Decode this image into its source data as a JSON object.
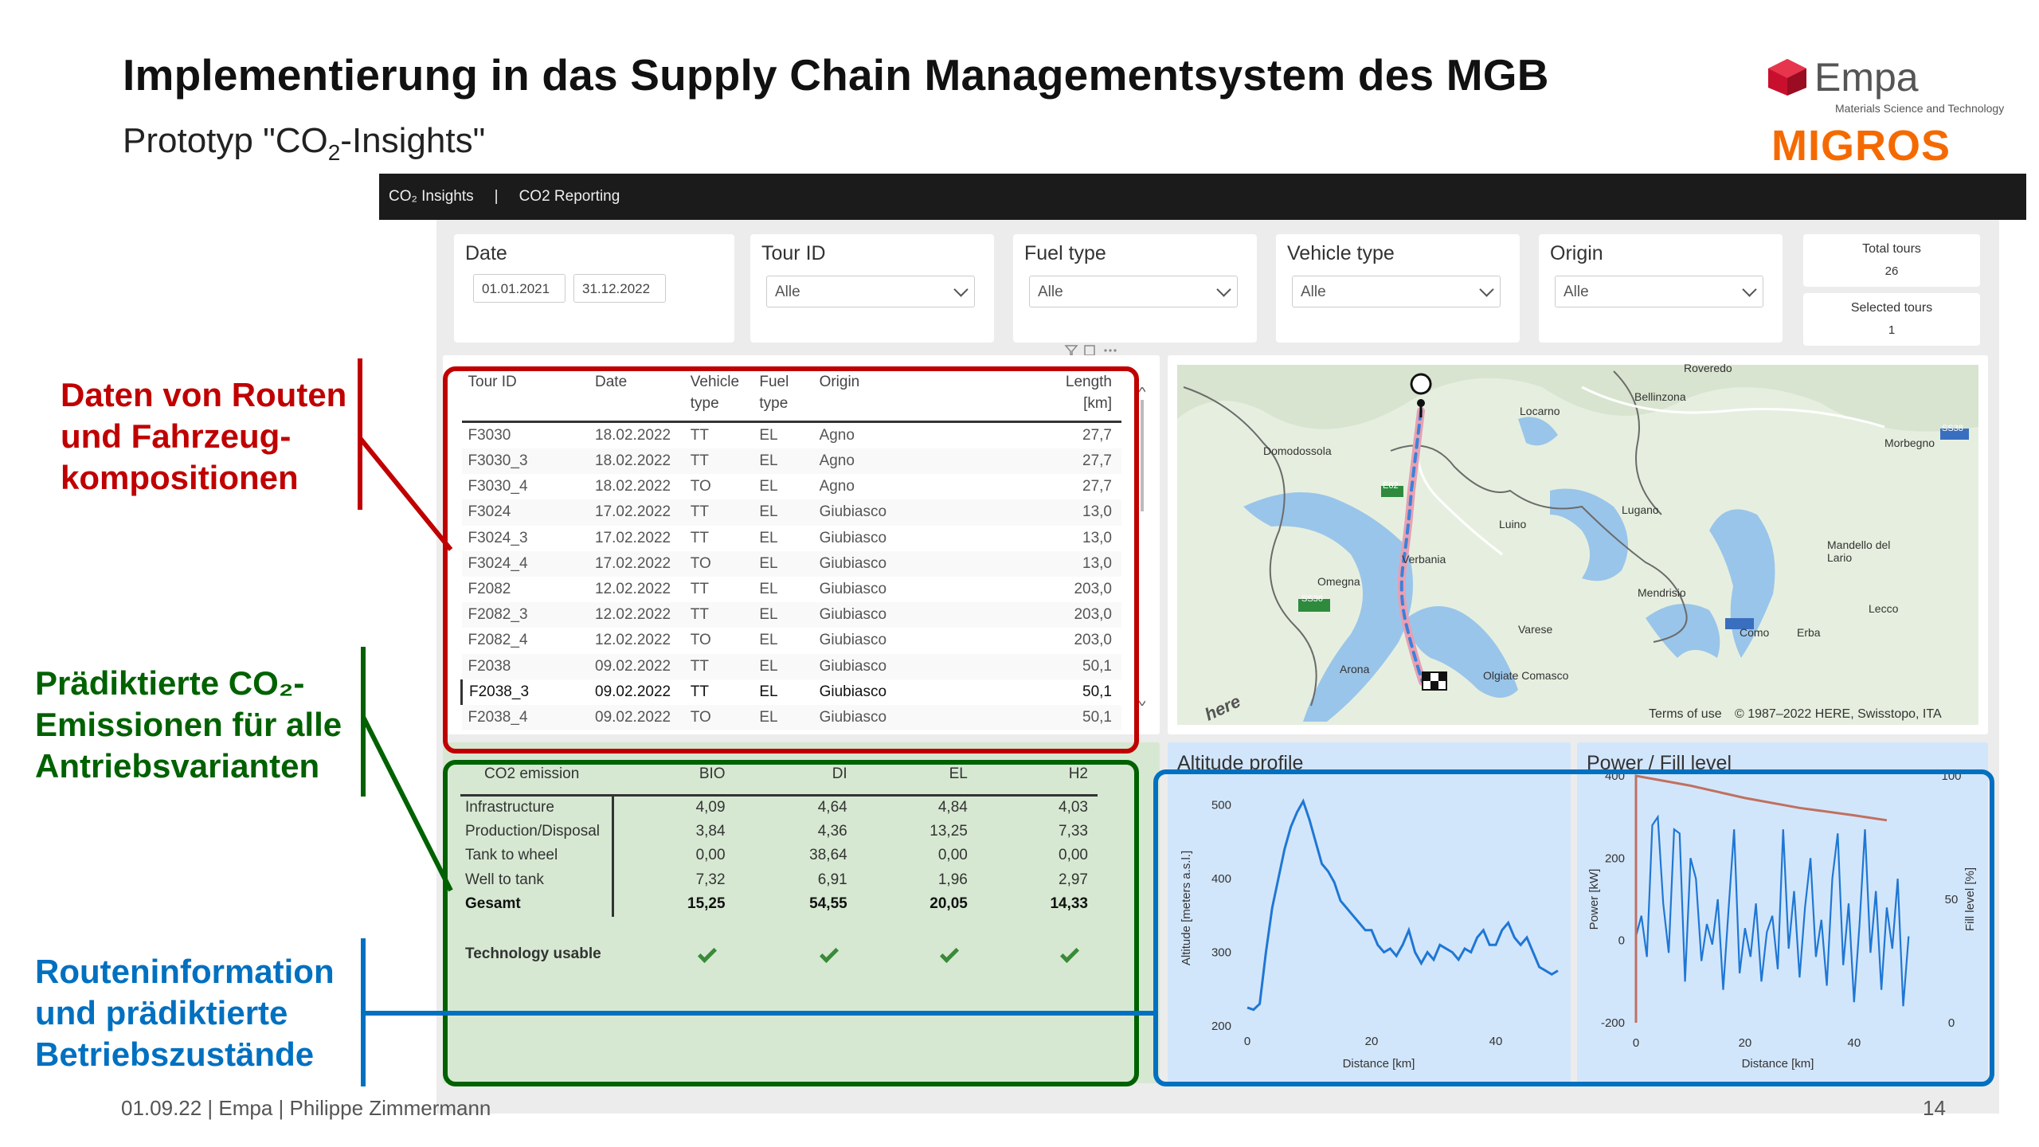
{
  "slide": {
    "title": "Implementierung in das Supply Chain Managementsystem des MGB",
    "subtitle_pre": "Prototyp \"CO",
    "subtitle_sub": "2",
    "subtitle_post": "-Insights\"",
    "empa_word": "Empa",
    "empa_tagline": "Materials Science and Technology",
    "migros": "MIGROS",
    "footer": "01.09.22  |  Empa  |  Philippe Zimmermann",
    "page_number": "14"
  },
  "annotations": {
    "routes": [
      "Daten von Routen",
      "und Fahrzeug-",
      "kompositionen"
    ],
    "co2": [
      "Prädiktierte CO₂-",
      "Emissionen für alle",
      "Antriebsvarianten"
    ],
    "info": [
      "Routeninformation",
      "und prädiktierte",
      "Betriebszustände"
    ]
  },
  "colors": {
    "red": "#c00000",
    "green": "#006100",
    "blue": "#0070c0",
    "migros": "#f56a00"
  },
  "pbi": {
    "nav": [
      "CO₂ Insights",
      "|",
      "CO2 Reporting"
    ],
    "slicers": {
      "date_title": "Date",
      "date_from": "01.01.2021",
      "date_to": "31.12.2022",
      "tour_title": "Tour ID",
      "tour_value": "Alle",
      "fuel_title": "Fuel type",
      "fuel_value": "Alle",
      "vehicle_title": "Vehicle type",
      "vehicle_value": "Alle",
      "origin_title": "Origin",
      "origin_value": "Alle"
    },
    "cards": {
      "total_label": "Total tours",
      "total_value": "26",
      "selected_label": "Selected tours",
      "selected_value": "1"
    },
    "table": {
      "headers": [
        "Tour ID",
        "Date",
        "Vehicle\ntype",
        "Fuel\ntype",
        "Origin",
        "Length\n[km]"
      ],
      "rows": [
        [
          "F3030",
          "18.02.2022",
          "TT",
          "EL",
          "Agno",
          "27,7"
        ],
        [
          "F3030_3",
          "18.02.2022",
          "TT",
          "EL",
          "Agno",
          "27,7"
        ],
        [
          "F3030_4",
          "18.02.2022",
          "TO",
          "EL",
          "Agno",
          "27,7"
        ],
        [
          "F3024",
          "17.02.2022",
          "TT",
          "EL",
          "Giubiasco",
          "13,0"
        ],
        [
          "F3024_3",
          "17.02.2022",
          "TT",
          "EL",
          "Giubiasco",
          "13,0"
        ],
        [
          "F3024_4",
          "17.02.2022",
          "TO",
          "EL",
          "Giubiasco",
          "13,0"
        ],
        [
          "F2082",
          "12.02.2022",
          "TT",
          "EL",
          "Giubiasco",
          "203,0"
        ],
        [
          "F2082_3",
          "12.02.2022",
          "TT",
          "EL",
          "Giubiasco",
          "203,0"
        ],
        [
          "F2082_4",
          "12.02.2022",
          "TO",
          "EL",
          "Giubiasco",
          "203,0"
        ],
        [
          "F2038",
          "09.02.2022",
          "TT",
          "EL",
          "Giubiasco",
          "50,1"
        ],
        [
          "F2038_3",
          "09.02.2022",
          "TT",
          "EL",
          "Giubiasco",
          "50,1"
        ],
        [
          "F2038_4",
          "09.02.2022",
          "TO",
          "EL",
          "Giubiasco",
          "50,1"
        ]
      ],
      "selected_row": 10
    },
    "co2": {
      "headers": [
        "CO2 emission",
        "BIO",
        "DI",
        "EL",
        "H2"
      ],
      "rows": [
        [
          "Infrastructure",
          "4,09",
          "4,64",
          "4,84",
          "4,03"
        ],
        [
          "Production/Disposal",
          "3,84",
          "4,36",
          "13,25",
          "7,33"
        ],
        [
          "Tank to wheel",
          "0,00",
          "38,64",
          "0,00",
          "0,00"
        ],
        [
          "Well to tank",
          "7,32",
          "6,91",
          "1,96",
          "2,97"
        ]
      ],
      "total": [
        "Gesamt",
        "15,25",
        "54,55",
        "20,05",
        "14,33"
      ],
      "usable_label": "Technology usable"
    },
    "map": {
      "places": [
        "Roveredo",
        "Bellinzona",
        "Locarno",
        "Domodossola",
        "Morbegno",
        "Lugano",
        "Luino",
        "Verbania",
        "Mandello del Lario",
        "Omegna",
        "Mendrisio",
        "Lecco",
        "Varese",
        "Como",
        "Erba",
        "Arona",
        "Olgiate Comasco"
      ],
      "road_labels": [
        "E62",
        "SS36",
        "SS38"
      ],
      "terms": "Terms of use",
      "copyright": "© 1987–2022 HERE, Swisstopo, ITA",
      "brand": "here"
    },
    "altitude_title": "Altitude profile",
    "power_title": "Power / Fill level"
  },
  "chart_data": [
    {
      "type": "line",
      "title": "Altitude profile",
      "xlabel": "Distance [km]",
      "ylabel": "Altitude [meters a.s.l.]",
      "xlim": [
        0,
        50
      ],
      "ylim": [
        200,
        520
      ],
      "xticks": [
        "0",
        "20",
        "40"
      ],
      "yticks": [
        "200",
        "300",
        "400",
        "500"
      ],
      "color": "#1f77d4",
      "x": [
        0,
        1,
        2,
        3,
        4,
        5,
        6,
        7,
        8,
        9,
        10,
        11,
        12,
        13,
        14,
        15,
        16,
        17,
        18,
        19,
        20,
        21,
        22,
        23,
        24,
        25,
        26,
        27,
        28,
        29,
        30,
        31,
        32,
        33,
        34,
        35,
        36,
        37,
        38,
        39,
        40,
        41,
        42,
        43,
        44,
        45,
        46,
        47,
        48,
        49,
        50
      ],
      "y": [
        225,
        222,
        230,
        300,
        360,
        400,
        440,
        470,
        490,
        505,
        480,
        450,
        420,
        410,
        395,
        370,
        360,
        350,
        340,
        330,
        330,
        310,
        300,
        305,
        295,
        310,
        330,
        300,
        285,
        300,
        290,
        310,
        305,
        300,
        290,
        305,
        300,
        320,
        330,
        310,
        310,
        330,
        340,
        320,
        310,
        320,
        300,
        280,
        275,
        270,
        275
      ]
    },
    {
      "type": "line",
      "title": "Power / Fill level",
      "xlabel": "Distance [km]",
      "ylabel": "Power [kW]",
      "y2label": "Fill level [%]",
      "xlim": [
        0,
        52
      ],
      "ylim": [
        -200,
        400
      ],
      "y2lim": [
        0,
        100
      ],
      "xticks": [
        "0",
        "20",
        "40"
      ],
      "yticks": [
        "-200",
        "0",
        "200",
        "400"
      ],
      "y2ticks": [
        "0",
        "50",
        "100"
      ],
      "series": [
        {
          "color": "#1f77d4",
          "x": [
            0,
            1,
            2,
            3,
            4,
            5,
            6,
            7,
            8,
            9,
            10,
            11,
            12,
            13,
            14,
            15,
            16,
            17,
            18,
            19,
            20,
            21,
            22,
            23,
            24,
            25,
            26,
            27,
            28,
            29,
            30,
            31,
            32,
            33,
            34,
            35,
            36,
            37,
            38,
            39,
            40,
            41,
            42,
            43,
            44,
            45,
            46,
            47,
            48,
            49,
            50
          ],
          "y": [
            10,
            60,
            -40,
            280,
            300,
            90,
            -30,
            270,
            260,
            -100,
            200,
            150,
            -50,
            40,
            -10,
            100,
            -120,
            80,
            270,
            -80,
            30,
            -40,
            90,
            -100,
            20,
            60,
            -70,
            270,
            -20,
            120,
            -90,
            80,
            200,
            -40,
            50,
            -110,
            150,
            260,
            -60,
            90,
            -150,
            40,
            270,
            -30,
            120,
            -120,
            80,
            -20,
            150,
            -160,
            10
          ]
        },
        {
          "color": "#c07060",
          "axis": "y2",
          "x": [
            0,
            10,
            20,
            30,
            40,
            46
          ],
          "y": [
            100,
            96,
            91,
            87,
            84,
            82
          ]
        }
      ]
    }
  ]
}
